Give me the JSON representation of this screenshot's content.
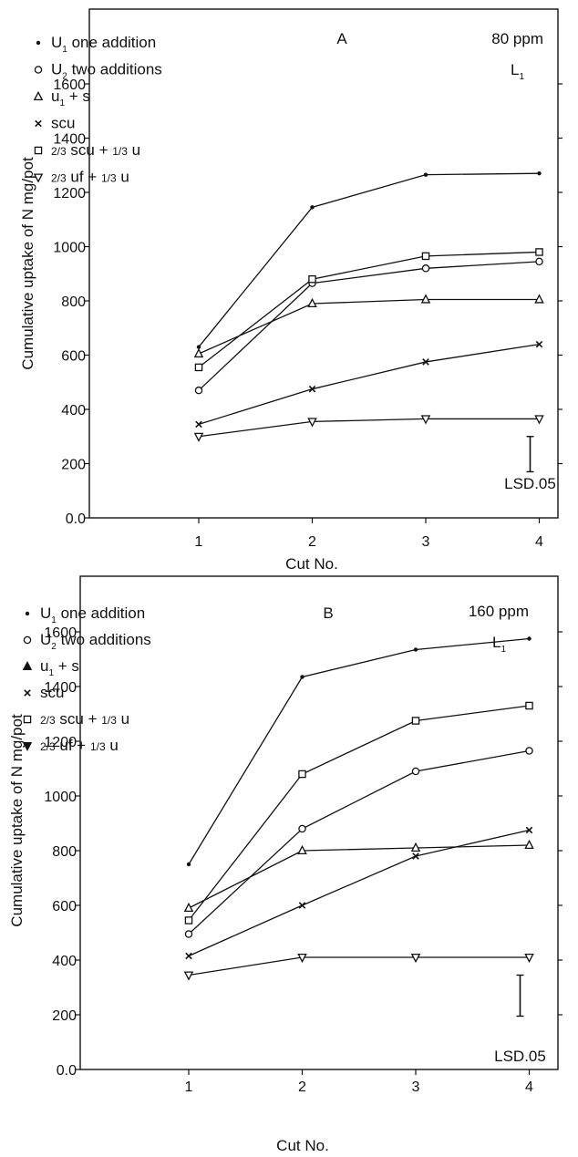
{
  "chart_data": [
    {
      "type": "line",
      "panel_label": "A",
      "annotation_top": "80 ppm",
      "annotation_level": {
        "base": "L",
        "sub": "1"
      },
      "xlabel": "Cut No.",
      "ylabel": "Cumulative uptake of N mg/pot",
      "x": [
        1,
        2,
        3,
        4
      ],
      "xticks": [
        "1",
        "2",
        "3",
        "4"
      ],
      "yticks": [
        "0.0",
        "200",
        "400",
        "600",
        "800",
        "1000",
        "1200",
        "1400",
        "1600"
      ],
      "ylim": [
        0,
        1800
      ],
      "lsd": {
        "label": "LSD.05",
        "x": 4,
        "y_low": 170,
        "y_high": 300
      },
      "legend": [
        {
          "marker": "dot",
          "parts": [
            {
              "t": "U"
            },
            {
              "t": "1",
              "sub": true
            },
            {
              "t": " one addition"
            }
          ]
        },
        {
          "marker": "circle",
          "parts": [
            {
              "t": "U"
            },
            {
              "t": "2",
              "sub": true
            },
            {
              "t": " two additions"
            }
          ]
        },
        {
          "marker": "triangle-up",
          "parts": [
            {
              "t": "u"
            },
            {
              "t": "1",
              "sub": true
            },
            {
              "t": " + s"
            }
          ]
        },
        {
          "marker": "cross",
          "parts": [
            {
              "t": "scu"
            }
          ]
        },
        {
          "marker": "square",
          "parts": [
            {
              "t": "2/3",
              "small": true
            },
            {
              "t": " scu + "
            },
            {
              "t": "1/3",
              "small": true
            },
            {
              "t": " u"
            }
          ]
        },
        {
          "marker": "triangle-down",
          "parts": [
            {
              "t": "2/3",
              "small": true
            },
            {
              "t": " uf + "
            },
            {
              "t": "1/3",
              "small": true
            },
            {
              "t": " u"
            }
          ]
        }
      ],
      "series": [
        {
          "marker": "dot",
          "values": [
            630,
            1145,
            1265,
            1270
          ]
        },
        {
          "marker": "circle",
          "values": [
            470,
            865,
            920,
            945
          ]
        },
        {
          "marker": "triangle-up",
          "values": [
            605,
            790,
            805,
            805
          ]
        },
        {
          "marker": "cross",
          "values": [
            345,
            475,
            575,
            640
          ]
        },
        {
          "marker": "square",
          "values": [
            555,
            880,
            965,
            980
          ]
        },
        {
          "marker": "triangle-down",
          "values": [
            300,
            355,
            365,
            365
          ]
        }
      ]
    },
    {
      "type": "line",
      "panel_label": "B",
      "annotation_top": "160 ppm",
      "annotation_level": {
        "base": "L",
        "sub": "1"
      },
      "xlabel": "Cut No.",
      "ylabel": "Cumulative uptake of N mg/pot",
      "x": [
        1,
        2,
        3,
        4
      ],
      "xticks": [
        "1",
        "2",
        "3",
        "4"
      ],
      "yticks": [
        "0.0",
        "200",
        "400",
        "600",
        "800",
        "1000",
        "1200",
        "1400",
        "1600"
      ],
      "ylim": [
        0,
        1800
      ],
      "lsd": {
        "label": "LSD.05",
        "x": 4,
        "y_low": 195,
        "y_high": 345
      },
      "legend": [
        {
          "marker": "dot",
          "parts": [
            {
              "t": "U"
            },
            {
              "t": "1",
              "sub": true
            },
            {
              "t": " one addition"
            }
          ]
        },
        {
          "marker": "circle",
          "parts": [
            {
              "t": "U"
            },
            {
              "t": "2",
              "sub": true
            },
            {
              "t": " two additions"
            }
          ]
        },
        {
          "marker": "triangle-up-filled",
          "parts": [
            {
              "t": "u"
            },
            {
              "t": "1",
              "sub": true
            },
            {
              "t": " + s"
            }
          ]
        },
        {
          "marker": "cross",
          "parts": [
            {
              "t": "scu"
            }
          ]
        },
        {
          "marker": "square",
          "parts": [
            {
              "t": "2/3",
              "small": true
            },
            {
              "t": " scu + "
            },
            {
              "t": "1/3",
              "small": true
            },
            {
              "t": " u"
            }
          ]
        },
        {
          "marker": "triangle-down-filled",
          "parts": [
            {
              "t": "2/3",
              "small": true
            },
            {
              "t": " uf + "
            },
            {
              "t": "1/3",
              "small": true
            },
            {
              "t": " u"
            }
          ]
        }
      ],
      "series": [
        {
          "marker": "dot",
          "values": [
            750,
            1435,
            1535,
            1575
          ]
        },
        {
          "marker": "circle",
          "values": [
            495,
            880,
            1090,
            1165
          ]
        },
        {
          "marker": "triangle-up",
          "values": [
            590,
            800,
            810,
            820
          ]
        },
        {
          "marker": "cross",
          "values": [
            415,
            600,
            780,
            875
          ]
        },
        {
          "marker": "square",
          "values": [
            545,
            1080,
            1275,
            1330
          ]
        },
        {
          "marker": "triangle-down",
          "values": [
            345,
            410,
            410,
            410
          ]
        }
      ]
    }
  ]
}
